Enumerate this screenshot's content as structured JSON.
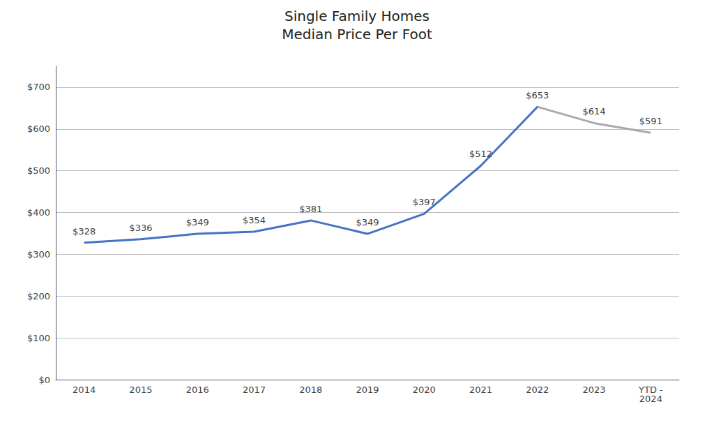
{
  "chart_data": {
    "type": "line",
    "title": "Single Family Homes",
    "subtitle": "Median Price Per Foot",
    "categories": [
      "2014",
      "2015",
      "2016",
      "2017",
      "2018",
      "2019",
      "2020",
      "2021",
      "2022",
      "2023",
      "YTD -\n2024"
    ],
    "values": [
      328,
      336,
      349,
      354,
      381,
      349,
      397,
      512,
      653,
      614,
      591
    ],
    "value_labels": [
      "$328",
      "$336",
      "$349",
      "$354",
      "$381",
      "$349",
      "$397",
      "$512",
      "$653",
      "$614",
      "$591"
    ],
    "data_labels": true,
    "colors": [
      "#4472C4",
      "#4472C4",
      "#4472C4",
      "#4472C4",
      "#4472C4",
      "#4472C4",
      "#4472C4",
      "#4472C4",
      "#4472C4",
      "#AAAAAA",
      "#AAAAAA"
    ],
    "ylim": [
      0,
      750
    ],
    "yticks": [
      {
        "value": 0,
        "label": "$0"
      },
      {
        "value": 100,
        "label": "$100"
      },
      {
        "value": 200,
        "label": "$200"
      },
      {
        "value": 300,
        "label": "$300"
      },
      {
        "value": 400,
        "label": "$400"
      },
      {
        "value": 500,
        "label": "$500"
      },
      {
        "value": 600,
        "label": "$600"
      },
      {
        "value": 700,
        "label": "$700"
      }
    ],
    "grid": true
  }
}
